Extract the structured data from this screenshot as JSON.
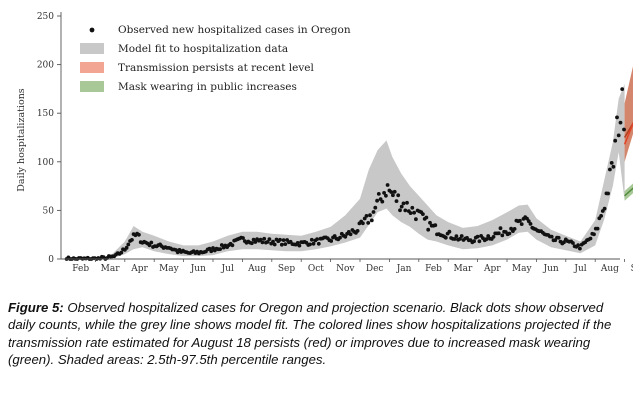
{
  "chart_data": {
    "type": "scatter",
    "ylabel": "Daily hospitalizations",
    "yticks": [
      0,
      50,
      100,
      150,
      200,
      250
    ],
    "ylim": [
      0,
      250
    ],
    "xtick_labels": [
      "Feb",
      "Mar",
      "Apr",
      "May",
      "Jun",
      "Jul",
      "Aug",
      "Sep",
      "Oct",
      "Nov",
      "Dec",
      "Jan",
      "Feb",
      "Mar",
      "Apr",
      "May",
      "Jun",
      "Jul",
      "Aug",
      "Sep"
    ],
    "legend": {
      "placement": "top-left",
      "entries": [
        {
          "label": "Observed new hospitalized cases in Oregon",
          "kind": "dot",
          "color": "#111111"
        },
        {
          "label": "Model fit to hospitalization data",
          "kind": "band",
          "color": "#c8c8c8"
        },
        {
          "label": "Transmission persists at recent level",
          "kind": "band",
          "color": "#f2a592"
        },
        {
          "label": "Mask wearing in public increases",
          "kind": "band",
          "color": "#a9c898"
        }
      ]
    },
    "observed_trend": [
      [
        0,
        0
      ],
      [
        1,
        0
      ],
      [
        1.4,
        1
      ],
      [
        1.7,
        3
      ],
      [
        2,
        10
      ],
      [
        2.2,
        20
      ],
      [
        2.4,
        25
      ],
      [
        2.6,
        18
      ],
      [
        3,
        14
      ],
      [
        3.5,
        12
      ],
      [
        3.8,
        8
      ],
      [
        4.2,
        6
      ],
      [
        4.6,
        7
      ],
      [
        5,
        10
      ],
      [
        5.5,
        14
      ],
      [
        6,
        20
      ],
      [
        6.5,
        19
      ],
      [
        7,
        18
      ],
      [
        7.5,
        17
      ],
      [
        8,
        16
      ],
      [
        8.5,
        18
      ],
      [
        9,
        20
      ],
      [
        9.5,
        24
      ],
      [
        10,
        32
      ],
      [
        10.4,
        45
      ],
      [
        10.7,
        62
      ],
      [
        10.9,
        74
      ],
      [
        11.1,
        66
      ],
      [
        11.4,
        58
      ],
      [
        11.7,
        52
      ],
      [
        12,
        45
      ],
      [
        12.3,
        36
      ],
      [
        12.6,
        30
      ],
      [
        13,
        25
      ],
      [
        13.5,
        20
      ],
      [
        14,
        20
      ],
      [
        14.5,
        24
      ],
      [
        15,
        30
      ],
      [
        15.4,
        36
      ],
      [
        15.7,
        38
      ],
      [
        16,
        30
      ],
      [
        16.5,
        20
      ],
      [
        17,
        18
      ],
      [
        17.5,
        12
      ],
      [
        18,
        26
      ],
      [
        18.3,
        55
      ],
      [
        18.6,
        95
      ],
      [
        18.8,
        145
      ],
      [
        19,
        160
      ]
    ],
    "model_fit_band": {
      "x": [
        0,
        1,
        1.5,
        2,
        2.3,
        2.6,
        3,
        3.5,
        4,
        4.5,
        5,
        5.5,
        6,
        6.5,
        7,
        7.5,
        8,
        8.5,
        9,
        9.5,
        10,
        10.3,
        10.6,
        10.9,
        11.1,
        11.4,
        11.7,
        12,
        12.3,
        12.6,
        13,
        13.5,
        14,
        14.5,
        15,
        15.4,
        15.7,
        16,
        16.5,
        17,
        17.5,
        18,
        18.3,
        18.6,
        18.8,
        19
      ],
      "lower": [
        0,
        0,
        0,
        5,
        10,
        12,
        8,
        5,
        3,
        3,
        4,
        8,
        10,
        10,
        9,
        8,
        8,
        10,
        13,
        17,
        22,
        35,
        48,
        52,
        45,
        38,
        33,
        26,
        20,
        18,
        14,
        10,
        11,
        14,
        20,
        27,
        28,
        20,
        12,
        9,
        6,
        14,
        40,
        75,
        110,
        60
      ],
      "upper": [
        0,
        0,
        3,
        18,
        34,
        28,
        24,
        18,
        14,
        14,
        18,
        24,
        28,
        28,
        26,
        25,
        24,
        28,
        33,
        45,
        62,
        92,
        112,
        122,
        105,
        88,
        75,
        65,
        55,
        45,
        38,
        32,
        34,
        40,
        48,
        55,
        56,
        42,
        30,
        24,
        18,
        40,
        80,
        120,
        165,
        180
      ]
    },
    "projection_red": {
      "x": [
        19,
        19.3,
        19.6,
        19.9,
        20.3
      ],
      "lower": [
        100,
        130,
        132,
        125,
        130
      ],
      "upper": [
        160,
        200,
        225,
        230,
        232
      ],
      "median": [
        125,
        140,
        145,
        143,
        142
      ]
    },
    "projection_red_line2": {
      "x": [
        19,
        19.3,
        19.6,
        19.9,
        20.3
      ],
      "y": [
        118,
        140,
        150,
        157,
        158
      ]
    },
    "projection_green": {
      "x": [
        19,
        19.3,
        19.6,
        19.9,
        20.3
      ],
      "lower": [
        60,
        68,
        70,
        70,
        72
      ],
      "upper": [
        70,
        78,
        80,
        80,
        80
      ]
    }
  },
  "caption": {
    "label": "Figure 5:",
    "text": " Observed hospitalized cases for Oregon and projection scenario. Black dots show observed daily counts, while the grey line shows model fit. The colored lines show hospitalizations projected if the transmission rate estimated for August 18 persists (red) or improves due to increased mask wearing (green). Shaded areas: 2.5th-97.5th percentile ranges."
  }
}
